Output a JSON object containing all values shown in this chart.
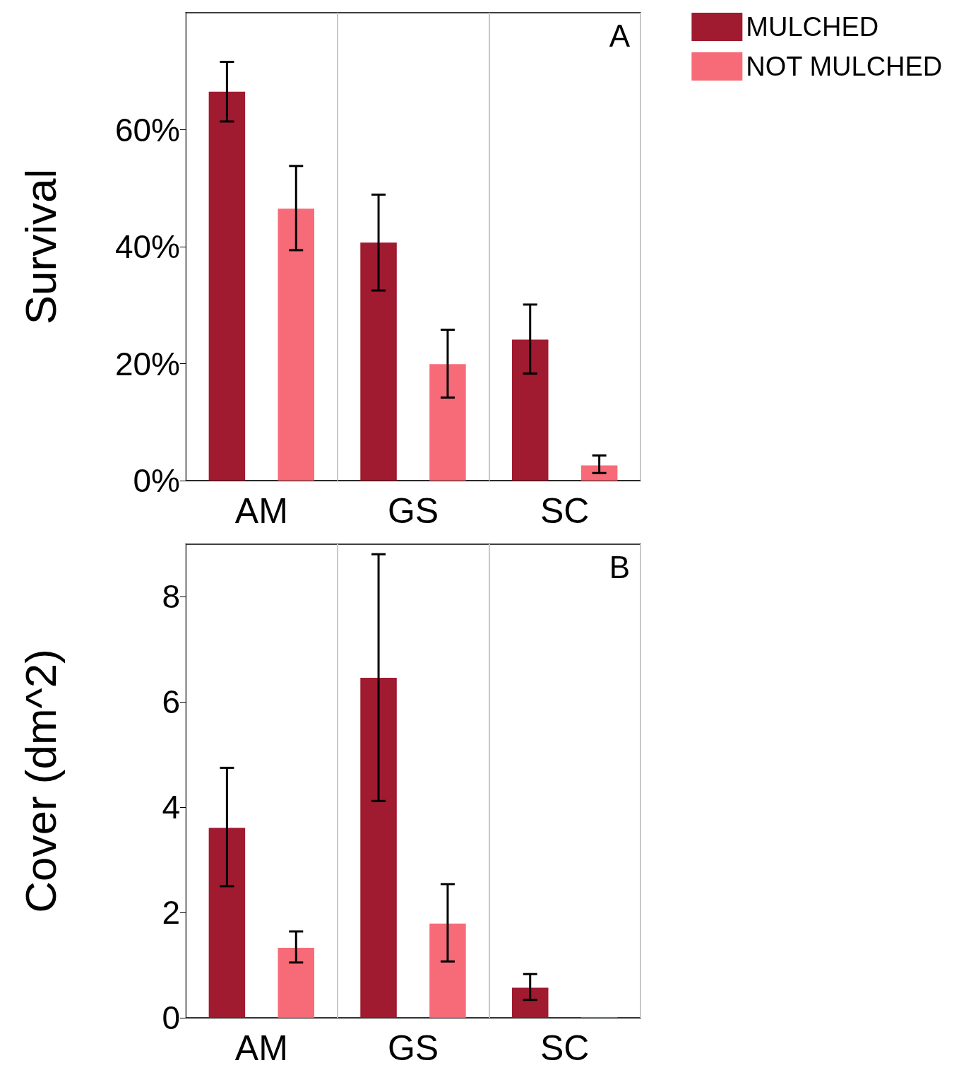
{
  "chart_data": [
    {
      "type": "bar",
      "ylabel": "Survival",
      "categories": [
        "AM",
        "GS",
        "SC"
      ],
      "ylim": [
        0,
        80
      ],
      "yticks": [
        {
          "value": 0,
          "label": "0%"
        },
        {
          "value": 20,
          "label": "20%"
        },
        {
          "value": 40,
          "label": "40%"
        },
        {
          "value": 60,
          "label": "60%"
        }
      ],
      "grid": "x",
      "legend": "top right",
      "annotations": [
        "A"
      ],
      "series": [
        {
          "name": "MULCHED",
          "color": "#a01a30",
          "values": [
            66.5,
            40.7,
            24.1
          ],
          "errors": [
            [
              61.4,
              71.6
            ],
            [
              32.5,
              48.9
            ],
            [
              18.3,
              30.1
            ]
          ]
        },
        {
          "name": "NOT MULCHED",
          "color": "#f76b78",
          "values": [
            46.5,
            19.9,
            2.6
          ],
          "errors": [
            [
              39.4,
              53.8
            ],
            [
              14.2,
              25.8
            ],
            [
              1.3,
              4.3
            ]
          ]
        }
      ]
    },
    {
      "type": "bar",
      "ylabel": "Cover (dm^2)",
      "categories": [
        "AM",
        "GS",
        "SC"
      ],
      "ylim": [
        0,
        9
      ],
      "yticks": [
        0,
        2,
        4,
        6,
        8
      ],
      "grid": "x",
      "annotations": [
        "B"
      ],
      "series": [
        {
          "color": "#a01a30",
          "values": [
            3.61,
            6.46,
            0.57
          ],
          "errors": [
            [
              2.5,
              4.75
            ],
            [
              4.12,
              8.81
            ],
            [
              0.34,
              0.83
            ]
          ]
        },
        {
          "color": "#f76b78",
          "values": [
            1.33,
            1.79,
            0.01
          ],
          "errors": [
            [
              1.05,
              1.64
            ],
            [
              1.07,
              2.54
            ],
            null
          ]
        }
      ]
    }
  ]
}
